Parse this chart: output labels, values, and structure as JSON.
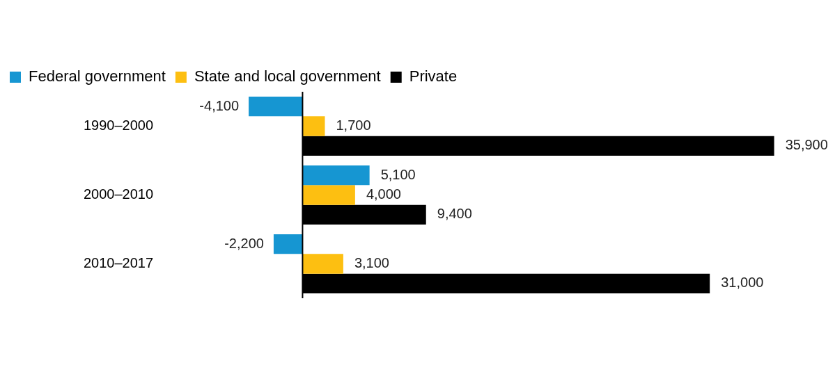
{
  "chart_data": {
    "type": "bar",
    "orientation": "horizontal",
    "categories": [
      "1990–2000",
      "2000–2010",
      "2010–2017"
    ],
    "series": [
      {
        "name": "Federal government",
        "color": "#1696d2",
        "values": [
          -4100,
          5100,
          -2200
        ],
        "value_labels": [
          "-4,100",
          "5,100",
          "-2,200"
        ]
      },
      {
        "name": "State and local government",
        "color": "#fdbf11",
        "values": [
          1700,
          4000,
          3100
        ],
        "value_labels": [
          "1,700",
          "4,000",
          "3,100"
        ]
      },
      {
        "name": "Private",
        "color": "#000000",
        "values": [
          35900,
          9400,
          31000
        ],
        "value_labels": [
          "35,900",
          "9,400",
          "31,000"
        ]
      }
    ],
    "legend": "top left",
    "grid": false,
    "tick_labels": "y"
  }
}
